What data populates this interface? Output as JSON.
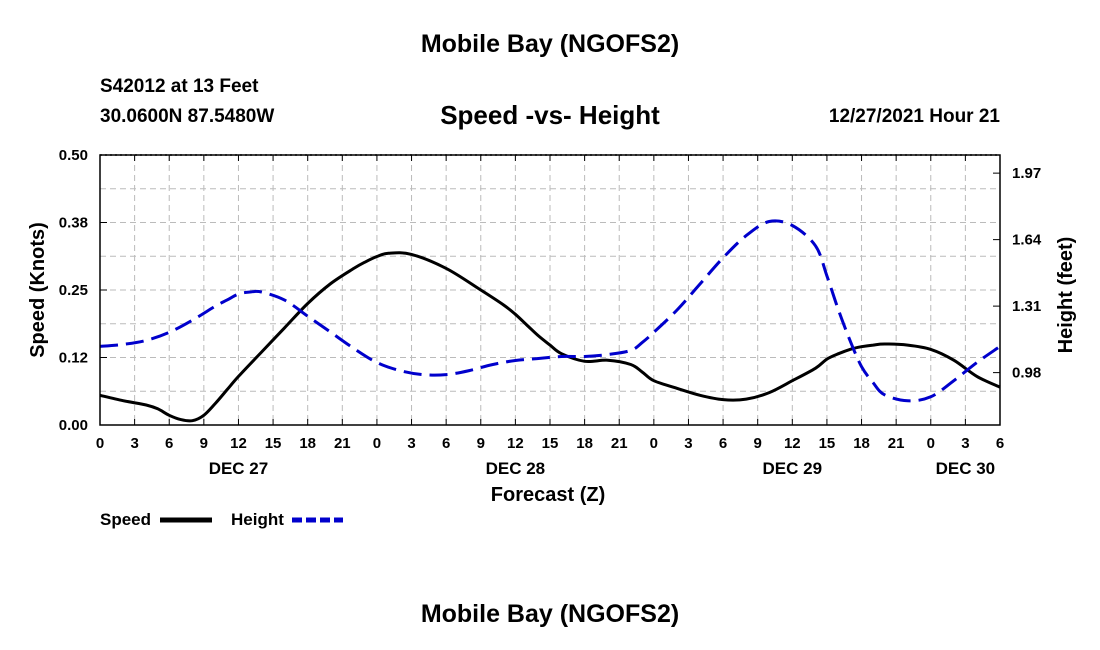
{
  "header": {
    "title": "Mobile Bay (NGOFS2)",
    "station": "S42012 at 13 Feet",
    "coords": "30.0600N  87.5480W",
    "subtitle": "Speed -vs- Height",
    "timestamp": "12/27/2021 Hour 21"
  },
  "footer": {
    "title": "Mobile Bay (NGOFS2)"
  },
  "colors": {
    "speed": "#000000",
    "height": "#0000cc",
    "grid": "#bbbbbb"
  },
  "chart_data": {
    "type": "line",
    "title": "Speed -vs- Height",
    "xlabel": "Forecast (Z)",
    "ylabel": "Speed (Knots)",
    "y2label": "Height (feet)",
    "xlim": [
      0,
      78
    ],
    "ylim": [
      0,
      0.5
    ],
    "y2lim": [
      0.72,
      2.06
    ],
    "yticks": [
      "0.00",
      "0.12",
      "0.25",
      "0.38",
      "0.50"
    ],
    "y2ticks": [
      "0.98",
      "1.31",
      "1.64",
      "1.97"
    ],
    "xtick_labels": [
      "0",
      "3",
      "6",
      "9",
      "12",
      "15",
      "18",
      "21",
      "0",
      "3",
      "6",
      "9",
      "12",
      "15",
      "18",
      "21",
      "0",
      "3",
      "6",
      "9",
      "12",
      "15",
      "18",
      "21",
      "0",
      "3",
      "6"
    ],
    "date_labels": [
      {
        "label": "DEC 27",
        "x": 12
      },
      {
        "label": "DEC 28",
        "x": 36
      },
      {
        "label": "DEC 29",
        "x": 60
      },
      {
        "label": "DEC 30",
        "x": 75
      }
    ],
    "legend": [
      "Speed",
      "Height"
    ],
    "series": [
      {
        "name": "Speed",
        "axis": "left",
        "style": "solid",
        "x": [
          0,
          2,
          4,
          5,
          6,
          7,
          8,
          9,
          10,
          11,
          12,
          14,
          16,
          18,
          20,
          22,
          23,
          24,
          25,
          27,
          30,
          33,
          35,
          36,
          37,
          38,
          39,
          40,
          42,
          44,
          46,
          47,
          48,
          50,
          52,
          54,
          56,
          58,
          60,
          62,
          63,
          64,
          65,
          66,
          67,
          68,
          70,
          72,
          74,
          76,
          78
        ],
        "y": [
          0.055,
          0.045,
          0.037,
          0.03,
          0.018,
          0.01,
          0.008,
          0.018,
          0.04,
          0.065,
          0.09,
          0.135,
          0.18,
          0.225,
          0.262,
          0.29,
          0.302,
          0.312,
          0.318,
          0.316,
          0.29,
          0.25,
          0.222,
          0.205,
          0.185,
          0.165,
          0.148,
          0.132,
          0.118,
          0.12,
          0.112,
          0.098,
          0.082,
          0.068,
          0.055,
          0.047,
          0.048,
          0.06,
          0.082,
          0.105,
          0.122,
          0.132,
          0.14,
          0.145,
          0.148,
          0.15,
          0.148,
          0.14,
          0.12,
          0.09,
          0.07
        ]
      },
      {
        "name": "Height",
        "axis": "right",
        "style": "dashed",
        "x": [
          0,
          2,
          4,
          6,
          8,
          10,
          11,
          12,
          13,
          14,
          16,
          18,
          20,
          22,
          24,
          26,
          28,
          30,
          32,
          34,
          36,
          38,
          40,
          42,
          44,
          46,
          47,
          48,
          50,
          52,
          54,
          56,
          58,
          60,
          62,
          63,
          64,
          65,
          66,
          67,
          68,
          70,
          72,
          74,
          76,
          78
        ],
        "y": [
          1.11,
          1.12,
          1.14,
          1.18,
          1.24,
          1.31,
          1.34,
          1.37,
          1.38,
          1.38,
          1.34,
          1.26,
          1.18,
          1.1,
          1.03,
          0.99,
          0.97,
          0.97,
          0.99,
          1.02,
          1.04,
          1.05,
          1.06,
          1.06,
          1.07,
          1.09,
          1.13,
          1.18,
          1.29,
          1.42,
          1.55,
          1.66,
          1.73,
          1.71,
          1.61,
          1.46,
          1.29,
          1.14,
          1.01,
          0.93,
          0.87,
          0.84,
          0.86,
          0.94,
          1.03,
          1.11
        ]
      }
    ]
  }
}
